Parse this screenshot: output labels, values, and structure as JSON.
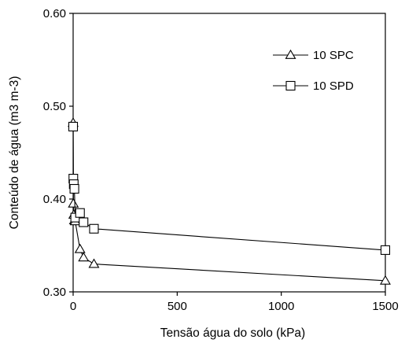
{
  "chart_data": {
    "type": "line",
    "title": "",
    "xlabel": "Tensão água do solo (kPa)",
    "ylabel": "Conteúdo de água (m3 m-3)",
    "xlim": [
      0,
      1500
    ],
    "ylim": [
      0.3,
      0.6
    ],
    "x_ticks": [
      0,
      500,
      1000,
      1500
    ],
    "x_tick_labels": [
      "0",
      "500",
      "1000",
      "1500"
    ],
    "y_ticks": [
      0.3,
      0.4,
      0.5,
      0.6
    ],
    "y_tick_labels": [
      "0.30",
      "0.40",
      "0.50",
      "0.60"
    ],
    "grid": false,
    "legend_position": "top-right",
    "series": [
      {
        "name": "10 SPC",
        "marker": "triangle",
        "color": "#000000",
        "x": [
          0,
          1,
          3,
          6,
          10,
          33,
          50,
          100,
          1500
        ],
        "y": [
          0.482,
          0.395,
          0.383,
          0.377,
          0.376,
          0.346,
          0.337,
          0.33,
          0.312
        ]
      },
      {
        "name": "10 SPD",
        "marker": "square",
        "color": "#000000",
        "x": [
          0,
          1,
          3,
          6,
          10,
          33,
          50,
          100,
          1500
        ],
        "y": [
          0.478,
          0.422,
          0.416,
          0.411,
          0.38,
          0.385,
          0.375,
          0.368,
          0.345
        ]
      }
    ]
  }
}
